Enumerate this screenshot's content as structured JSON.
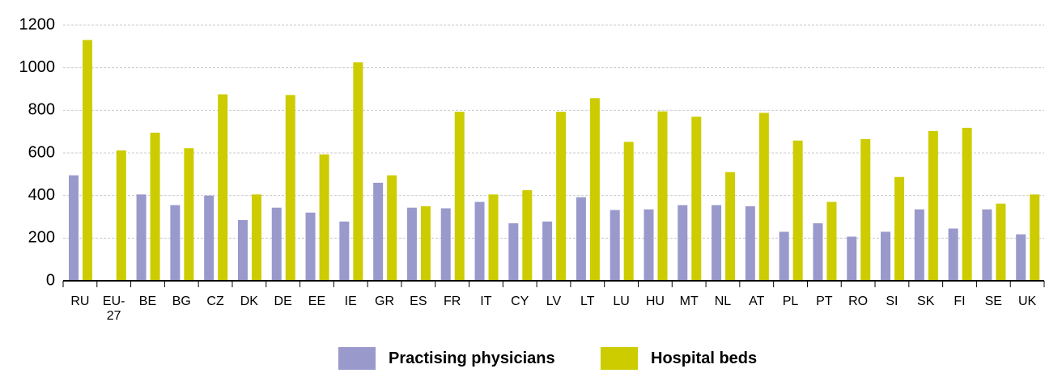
{
  "chart_data": {
    "type": "bar",
    "categories": [
      "RU",
      "EU-27",
      "BE",
      "BG",
      "CZ",
      "DK",
      "DE",
      "EE",
      "IE",
      "GR",
      "ES",
      "FR",
      "IT",
      "CY",
      "LV",
      "LT",
      "LU",
      "HU",
      "MT",
      "NL",
      "AT",
      "PL",
      "PT",
      "RO",
      "SI",
      "SK",
      "FI",
      "SE",
      "UK"
    ],
    "series": [
      {
        "name": "Practising physicians",
        "color": "#9999cc",
        "values": [
          495,
          null,
          405,
          355,
          400,
          285,
          343,
          320,
          278,
          460,
          343,
          340,
          370,
          270,
          278,
          392,
          332,
          335,
          355,
          355,
          350,
          230,
          270,
          207,
          230,
          335,
          245,
          335,
          218
        ]
      },
      {
        "name": "Hospital beds",
        "color": "#cccc00",
        "values": [
          1130,
          612,
          695,
          622,
          875,
          405,
          872,
          593,
          1025,
          495,
          350,
          793,
          405,
          425,
          793,
          857,
          652,
          795,
          770,
          510,
          788,
          658,
          370,
          665,
          487,
          703,
          718,
          362,
          405
        ]
      }
    ],
    "ylim": [
      0,
      1200
    ],
    "yticks": [
      0,
      200,
      400,
      600,
      800,
      1000,
      1200
    ],
    "grid": true,
    "legend": "bottom"
  }
}
